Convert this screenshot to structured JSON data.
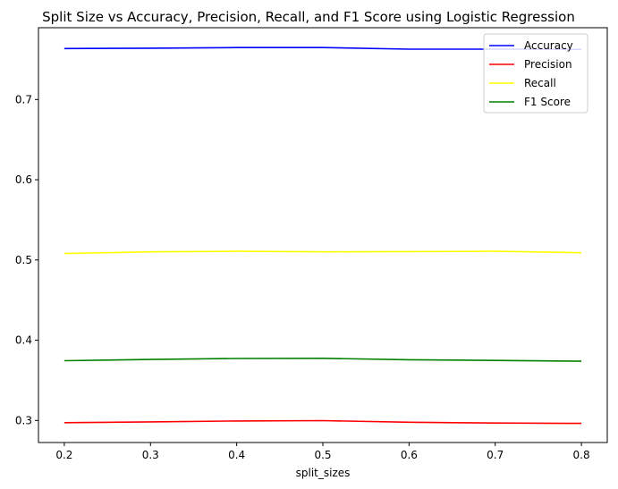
{
  "chart_data": {
    "type": "line",
    "title": "Split Size vs Accuracy, Precision, Recall, and F1 Score using Logistic Regression",
    "xlabel": "split_sizes",
    "ylabel": "",
    "x": [
      0.2,
      0.3,
      0.4,
      0.5,
      0.6,
      0.7,
      0.8
    ],
    "x_ticks": [
      "0.2",
      "0.3",
      "0.4",
      "0.5",
      "0.6",
      "0.7",
      "0.8"
    ],
    "y_ticks": [
      "0.3",
      "0.4",
      "0.5",
      "0.6",
      "0.7"
    ],
    "y_tick_values": [
      0.3,
      0.4,
      0.5,
      0.6,
      0.7
    ],
    "xlim": [
      0.17,
      0.83
    ],
    "ylim": [
      0.2725,
      0.7895
    ],
    "grid": false,
    "legend_position": "top-right",
    "series": [
      {
        "name": "Accuracy",
        "color": "#0000ff",
        "values": [
          0.7635,
          0.764,
          0.7648,
          0.7648,
          0.7628,
          0.7628,
          0.7625
        ]
      },
      {
        "name": "Precision",
        "color": "#ff0000",
        "values": [
          0.2972,
          0.2982,
          0.2994,
          0.2998,
          0.2978,
          0.2968,
          0.2963
        ]
      },
      {
        "name": "Recall",
        "color": "#ffff00",
        "values": [
          0.508,
          0.5102,
          0.5108,
          0.5102,
          0.5105,
          0.5108,
          0.509
        ]
      },
      {
        "name": "F1 Score",
        "color": "#008000",
        "values": [
          0.3745,
          0.376,
          0.3772,
          0.3775,
          0.3757,
          0.3748,
          0.3738
        ]
      }
    ]
  }
}
